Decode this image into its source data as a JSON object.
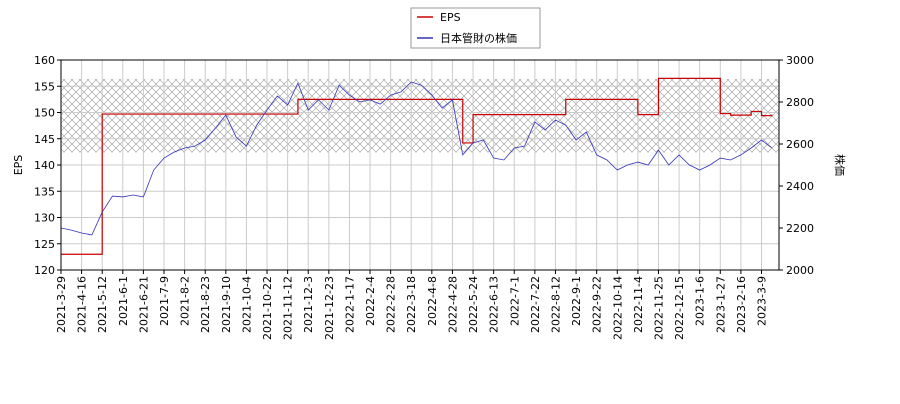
{
  "chart_data": {
    "type": "line",
    "categories": [
      "2021-3-29",
      null,
      "2021-4-16",
      null,
      "2021-5-12",
      null,
      "2021-6-1",
      null,
      "2021-6-21",
      null,
      "2021-7-9",
      null,
      "2021-8-2",
      null,
      "2021-8-23",
      null,
      "2021-9-10",
      null,
      "2021-10-4",
      null,
      "2021-10-22",
      null,
      "2021-11-12",
      null,
      "2021-12-3",
      null,
      "2021-12-23",
      null,
      "2022-1-17",
      null,
      "2022-2-4",
      null,
      "2022-2-28",
      null,
      "2022-3-18",
      null,
      "2022-4-8",
      null,
      "2022-4-28",
      null,
      "2022-5-24",
      null,
      "2022-6-13",
      null,
      "2022-7-1",
      null,
      "2022-7-22",
      null,
      "2022-8-12",
      null,
      "2022-9-1",
      null,
      "2022-9-22",
      null,
      "2022-10-14",
      null,
      "2022-11-4",
      null,
      "2022-11-25",
      null,
      "2022-12-15",
      null,
      "2023-1-6",
      null,
      "2023-1-27",
      null,
      "2023-2-16",
      null,
      "2023-3-9",
      null
    ],
    "series": [
      {
        "name": "EPS",
        "color": "#cc0000",
        "step": true,
        "values": [
          123,
          123,
          123,
          123,
          149.7,
          149.7,
          149.7,
          149.7,
          149.7,
          149.7,
          149.7,
          149.7,
          149.7,
          149.7,
          149.7,
          149.7,
          149.7,
          149.7,
          149.7,
          149.7,
          149.7,
          149.7,
          149.7,
          152.5,
          152.5,
          152.5,
          152.5,
          152.5,
          152.5,
          152.5,
          152.5,
          152.5,
          152.5,
          152.5,
          152.5,
          152.5,
          152.5,
          152.5,
          152.5,
          144.2,
          149.6,
          149.6,
          149.6,
          149.6,
          149.6,
          149.6,
          149.6,
          149.6,
          149.6,
          152.5,
          152.5,
          152.5,
          152.5,
          152.5,
          152.5,
          152.5,
          149.6,
          149.6,
          156.5,
          156.5,
          156.5,
          156.5,
          156.5,
          156.5,
          149.8,
          149.5,
          149.5,
          150.2,
          149.4,
          149.6
        ]
      },
      {
        "name": "日本管財の株価",
        "color": "#3333bb",
        "axis": "y2",
        "values": [
          2200,
          2190,
          2176,
          2167,
          2276,
          2352,
          2348,
          2357,
          2348,
          2476,
          2533,
          2562,
          2581,
          2590,
          2619,
          2676,
          2738,
          2633,
          2590,
          2690,
          2762,
          2829,
          2786,
          2890,
          2762,
          2810,
          2762,
          2880,
          2833,
          2800,
          2810,
          2790,
          2833,
          2848,
          2895,
          2880,
          2833,
          2771,
          2810,
          2548,
          2605,
          2619,
          2533,
          2524,
          2581,
          2590,
          2705,
          2667,
          2714,
          2690,
          2619,
          2657,
          2548,
          2524,
          2476,
          2500,
          2514,
          2500,
          2571,
          2500,
          2548,
          2500,
          2476,
          2500,
          2533,
          2524,
          2548,
          2581,
          2619,
          2581
        ]
      }
    ],
    "y_label": "EPS",
    "y2_label": "株価",
    "ylim": [
      120,
      160
    ],
    "yticks": [
      120,
      125,
      130,
      135,
      140,
      145,
      150,
      155,
      160
    ],
    "y2lim": [
      2000,
      3000
    ],
    "y2ticks": [
      2000,
      2200,
      2400,
      2600,
      2800,
      3000
    ],
    "y2band": [
      2560,
      2910
    ],
    "grid": true,
    "legend": "top"
  }
}
